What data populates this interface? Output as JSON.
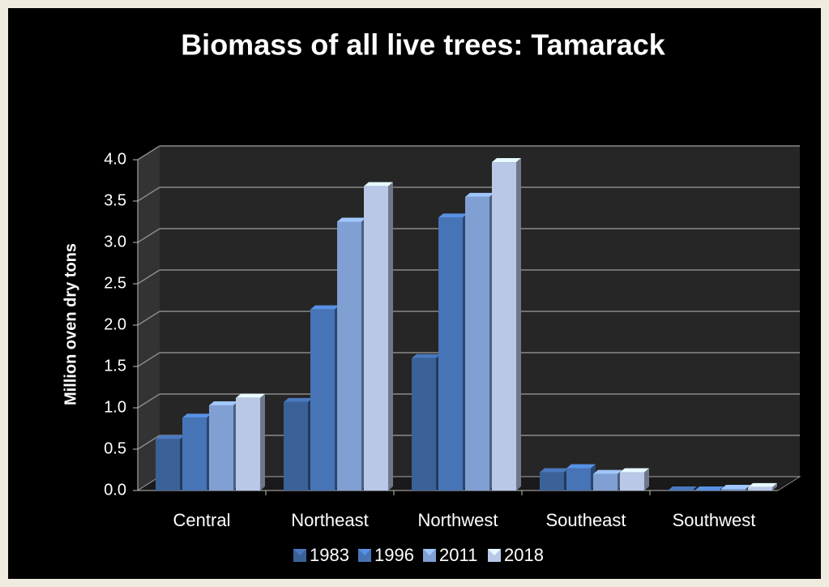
{
  "chart_data": {
    "type": "bar3d",
    "title": "Biomass of all live trees:   Tamarack",
    "y_label": "Million oven dry tons",
    "categories": [
      "Central",
      "Northeast",
      "Northwest",
      "Southeast",
      "Southwest"
    ],
    "series": [
      {
        "name": "1983",
        "color": "#3b6199",
        "values": [
          0.62,
          1.07,
          1.6,
          0.22,
          0.0
        ]
      },
      {
        "name": "1996",
        "color": "#4674b6",
        "values": [
          0.88,
          2.19,
          3.3,
          0.27,
          0.0
        ]
      },
      {
        "name": "2011",
        "color": "#809fd2",
        "values": [
          1.03,
          3.25,
          3.55,
          0.2,
          0.02
        ]
      },
      {
        "name": "2018",
        "color": "#b9c8e7",
        "values": [
          1.12,
          3.68,
          3.97,
          0.22,
          0.04
        ]
      }
    ],
    "ylim": [
      0,
      4
    ],
    "yticks": [
      {
        "value": 0,
        "label": "0.0"
      },
      {
        "value": 0.5,
        "label": "0.5"
      },
      {
        "value": 1,
        "label": "1.0"
      },
      {
        "value": 1.5,
        "label": "1.5"
      },
      {
        "value": 2,
        "label": "2.0"
      },
      {
        "value": 2.5,
        "label": "2.5"
      },
      {
        "value": 3,
        "label": "3.0"
      },
      {
        "value": 3.5,
        "label": "3.5"
      },
      {
        "value": 4,
        "label": "4.0"
      }
    ],
    "grid": true,
    "legend": "bottom"
  }
}
